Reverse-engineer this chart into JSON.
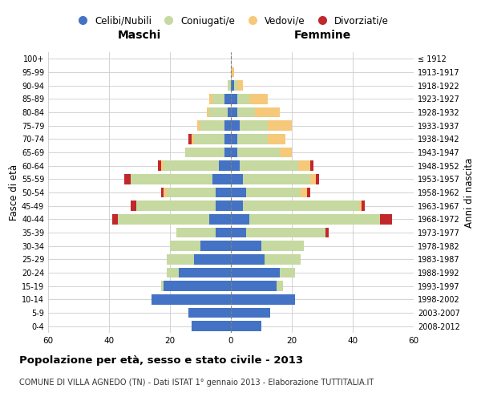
{
  "age_groups": [
    "0-4",
    "5-9",
    "10-14",
    "15-19",
    "20-24",
    "25-29",
    "30-34",
    "35-39",
    "40-44",
    "45-49",
    "50-54",
    "55-59",
    "60-64",
    "65-69",
    "70-74",
    "75-79",
    "80-84",
    "85-89",
    "90-94",
    "95-99",
    "100+"
  ],
  "birth_years": [
    "2008-2012",
    "2003-2007",
    "1998-2002",
    "1993-1997",
    "1988-1992",
    "1983-1987",
    "1978-1982",
    "1973-1977",
    "1968-1972",
    "1963-1967",
    "1958-1962",
    "1953-1957",
    "1948-1952",
    "1943-1947",
    "1938-1942",
    "1933-1937",
    "1928-1932",
    "1923-1927",
    "1918-1922",
    "1913-1917",
    "≤ 1912"
  ],
  "male_celibi": [
    13,
    14,
    26,
    22,
    17,
    12,
    10,
    5,
    7,
    5,
    5,
    6,
    4,
    2,
    2,
    2,
    1,
    2,
    0,
    0,
    0
  ],
  "male_coniugati": [
    0,
    0,
    0,
    1,
    4,
    9,
    10,
    13,
    30,
    26,
    16,
    27,
    18,
    13,
    10,
    8,
    6,
    4,
    1,
    0,
    0
  ],
  "male_vedovi": [
    0,
    0,
    0,
    0,
    0,
    0,
    0,
    0,
    0,
    0,
    1,
    0,
    1,
    0,
    1,
    1,
    1,
    1,
    0,
    0,
    0
  ],
  "male_divorziati": [
    0,
    0,
    0,
    0,
    0,
    0,
    0,
    0,
    2,
    2,
    1,
    2,
    1,
    0,
    1,
    0,
    0,
    0,
    0,
    0,
    0
  ],
  "female_celibi": [
    10,
    13,
    21,
    15,
    16,
    11,
    10,
    5,
    6,
    4,
    5,
    4,
    3,
    2,
    2,
    3,
    2,
    2,
    1,
    0,
    0
  ],
  "female_coniugati": [
    0,
    0,
    0,
    2,
    5,
    12,
    14,
    26,
    43,
    38,
    18,
    22,
    19,
    14,
    10,
    9,
    6,
    4,
    1,
    0,
    0
  ],
  "female_vedovi": [
    0,
    0,
    0,
    0,
    0,
    0,
    0,
    0,
    0,
    1,
    2,
    2,
    4,
    4,
    6,
    8,
    8,
    6,
    2,
    1,
    0
  ],
  "female_divorziati": [
    0,
    0,
    0,
    0,
    0,
    0,
    0,
    1,
    4,
    1,
    1,
    1,
    1,
    0,
    0,
    0,
    0,
    0,
    0,
    0,
    0
  ],
  "colors": {
    "celibi": "#4472C4",
    "coniugati": "#C5D9A0",
    "vedovi": "#F5C87A",
    "divorziati": "#C0282C"
  },
  "xlim": 60,
  "title": "Popolazione per età, sesso e stato civile - 2013",
  "subtitle": "COMUNE DI VILLA AGNEDO (TN) - Dati ISTAT 1° gennaio 2013 - Elaborazione TUTTITALIA.IT",
  "ylabel_left": "Fasce di età",
  "ylabel_right": "Anni di nascita",
  "legend_labels": [
    "Celibi/Nubili",
    "Coniugati/e",
    "Vedovi/e",
    "Divorziati/e"
  ],
  "maschi_label": "Maschi",
  "femmine_label": "Femmine",
  "bg_color": "#FFFFFF",
  "grid_color": "#CCCCCC"
}
